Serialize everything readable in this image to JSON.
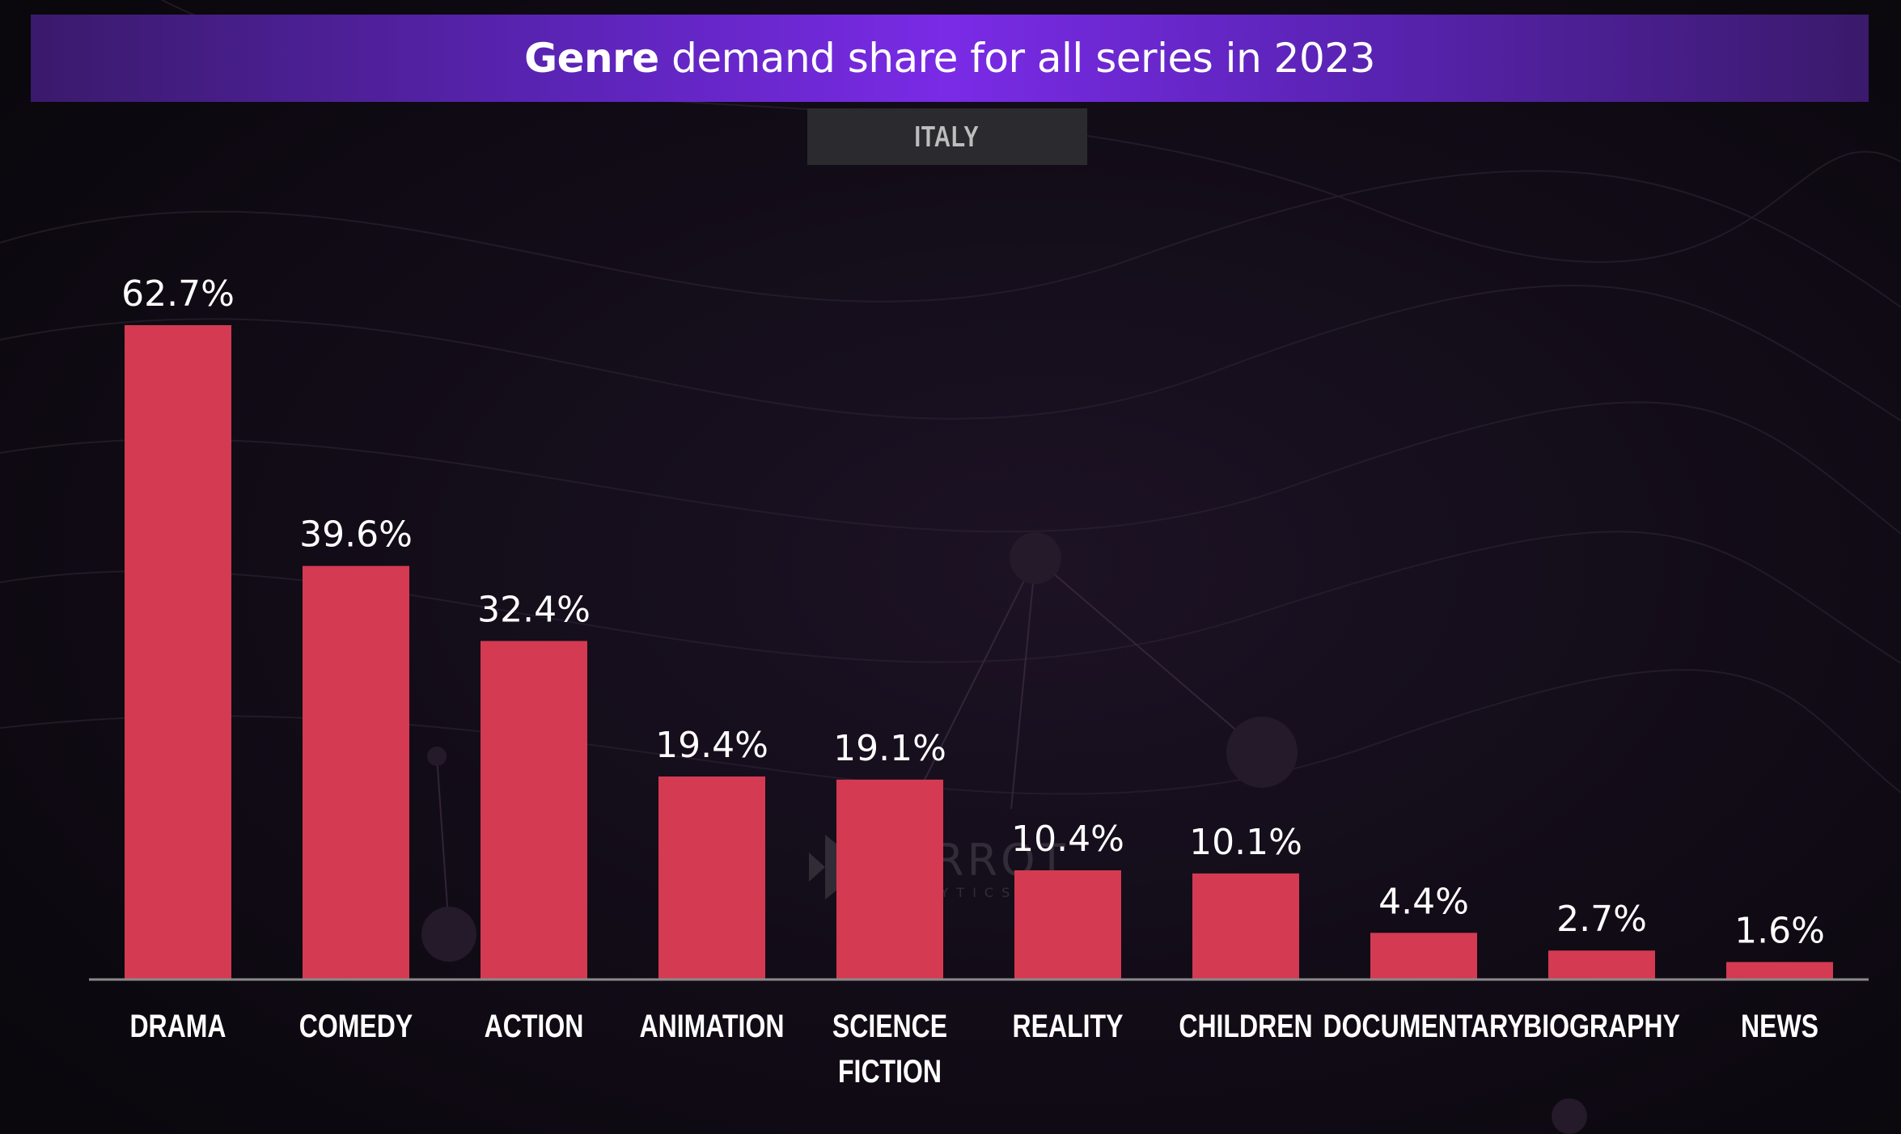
{
  "header": {
    "title_strong": "Genre",
    "title_rest": " demand share for all series in 2023",
    "subtitle": "ITALY"
  },
  "watermark": {
    "name": "PARROT",
    "sub": "ANALYTICS"
  },
  "colors": {
    "bar": "#d43a52",
    "axis": "#8a8a8a",
    "background": "#0c080f",
    "title_bar": "#7a2be6"
  },
  "chart_data": {
    "type": "bar",
    "title": "Genre demand share for all series in 2023",
    "subtitle": "ITALY",
    "categories": [
      "DRAMA",
      "COMEDY",
      "ACTION",
      "ANIMATION",
      "SCIENCE FICTION",
      "REALITY",
      "CHILDREN",
      "DOCUMENTARY",
      "BIOGRAPHY",
      "NEWS"
    ],
    "category_lines": [
      [
        "DRAMA"
      ],
      [
        "COMEDY"
      ],
      [
        "ACTION"
      ],
      [
        "ANIMATION"
      ],
      [
        "SCIENCE",
        "FICTION"
      ],
      [
        "REALITY"
      ],
      [
        "CHILDREN"
      ],
      [
        "DOCUMENTARY"
      ],
      [
        "BIOGRAPHY"
      ],
      [
        "NEWS"
      ]
    ],
    "values": [
      62.7,
      39.6,
      32.4,
      19.4,
      19.1,
      10.4,
      10.1,
      4.4,
      2.7,
      1.6
    ],
    "value_labels": [
      "62.7%",
      "39.6%",
      "32.4%",
      "19.4%",
      "19.1%",
      "10.4%",
      "10.1%",
      "4.4%",
      "2.7%",
      "1.6%"
    ],
    "xlabel": "",
    "ylabel": "",
    "ylim": [
      0,
      62.7
    ],
    "grid": false
  }
}
